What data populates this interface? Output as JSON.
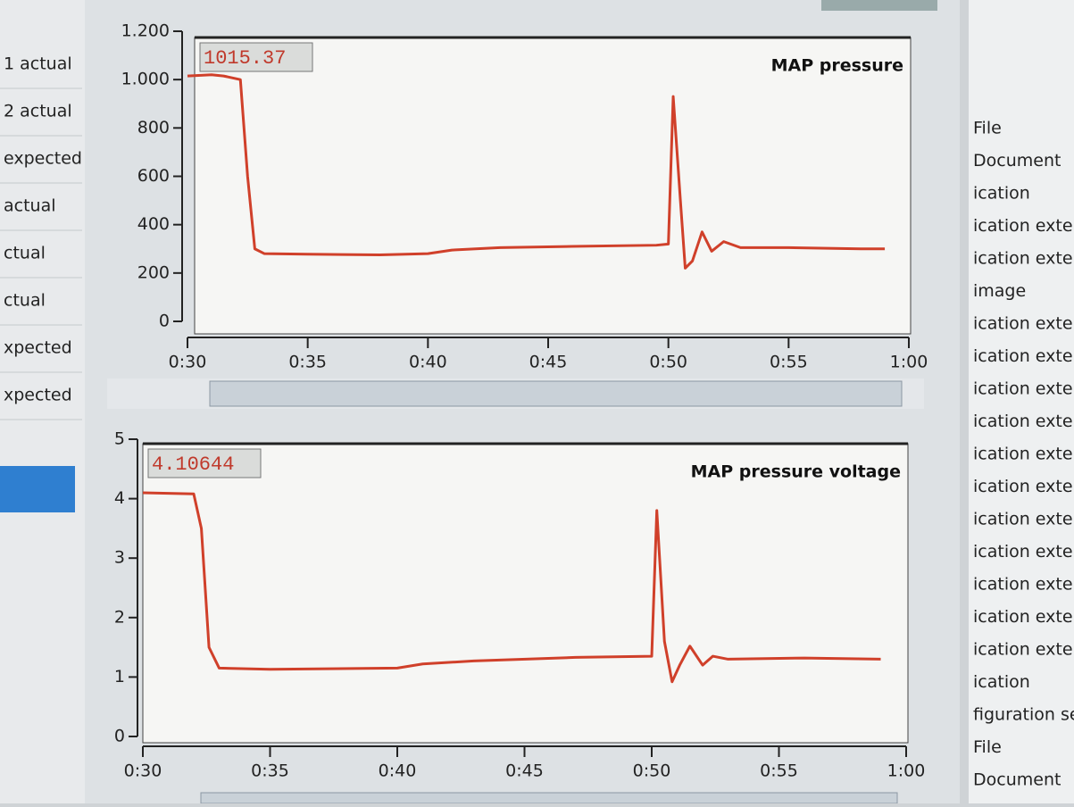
{
  "left_list": [
    "1 actual",
    "2 actual",
    "expected",
    "actual",
    "ctual",
    "ctual",
    "xpected",
    "xpected"
  ],
  "right_list": [
    "File",
    "Document",
    "ication",
    "ication exten",
    "ication exten",
    "image",
    "ication exten",
    "ication exten",
    "ication exten",
    "ication exten",
    "ication exten",
    "ication exten",
    "ication exten",
    "ication exten",
    "ication exten",
    "ication exten",
    "ication exten",
    "ication",
    "figuration set",
    "File",
    "Document"
  ],
  "chart_data": [
    {
      "type": "line",
      "title": "MAP pressure",
      "readout": "1015.37",
      "x": [
        30,
        31,
        31.5,
        32.2,
        32.5,
        32.8,
        33.2,
        35,
        38,
        40,
        41,
        43,
        46,
        49.5,
        50,
        50.2,
        50.5,
        50.7,
        51,
        51.4,
        51.8,
        52.3,
        53,
        55,
        58,
        59
      ],
      "series": [
        {
          "color": "#d0402a",
          "values": [
            1015,
            1020,
            1015,
            1000,
            600,
            300,
            280,
            278,
            275,
            280,
            295,
            305,
            310,
            315,
            320,
            930,
            500,
            220,
            250,
            370,
            290,
            330,
            305,
            305,
            300,
            300
          ]
        }
      ],
      "xlim": [
        30,
        60
      ],
      "xticks": [
        {
          "value": 30,
          "label": "0:30"
        },
        {
          "value": 35,
          "label": "0:35"
        },
        {
          "value": 40,
          "label": "0:40"
        },
        {
          "value": 45,
          "label": "0:45"
        },
        {
          "value": 50,
          "label": "0:50"
        },
        {
          "value": 55,
          "label": "0:55"
        },
        {
          "value": 60,
          "label": "1:00"
        }
      ],
      "ylim": [
        0,
        1200
      ],
      "yticks": [
        0,
        200,
        400,
        600,
        800,
        {
          "value": 1000,
          "label": "1.000"
        },
        {
          "value": 1200,
          "label": "1.200"
        }
      ]
    },
    {
      "type": "line",
      "title": "MAP pressure voltage",
      "readout": "4.10644",
      "x": [
        30,
        32,
        32.3,
        32.6,
        33,
        35,
        40,
        41,
        43,
        47,
        50,
        50.2,
        50.5,
        50.8,
        51.1,
        51.5,
        52,
        52.4,
        53,
        56,
        59
      ],
      "series": [
        {
          "color": "#d0402a",
          "values": [
            4.1,
            4.08,
            3.5,
            1.5,
            1.15,
            1.13,
            1.15,
            1.22,
            1.27,
            1.33,
            1.35,
            3.8,
            1.6,
            0.92,
            1.2,
            1.52,
            1.2,
            1.35,
            1.3,
            1.32,
            1.3
          ]
        }
      ],
      "xlim": [
        30,
        60
      ],
      "xticks": [
        {
          "value": 30,
          "label": "0:30"
        },
        {
          "value": 35,
          "label": "0:35"
        },
        {
          "value": 40,
          "label": "0:40"
        },
        {
          "value": 45,
          "label": "0:45"
        },
        {
          "value": 50,
          "label": "0:50"
        },
        {
          "value": 55,
          "label": "0:55"
        },
        {
          "value": 60,
          "label": "1:00"
        }
      ],
      "ylim": [
        0,
        5
      ],
      "yticks": [
        0,
        1,
        2,
        3,
        4,
        5
      ]
    }
  ]
}
